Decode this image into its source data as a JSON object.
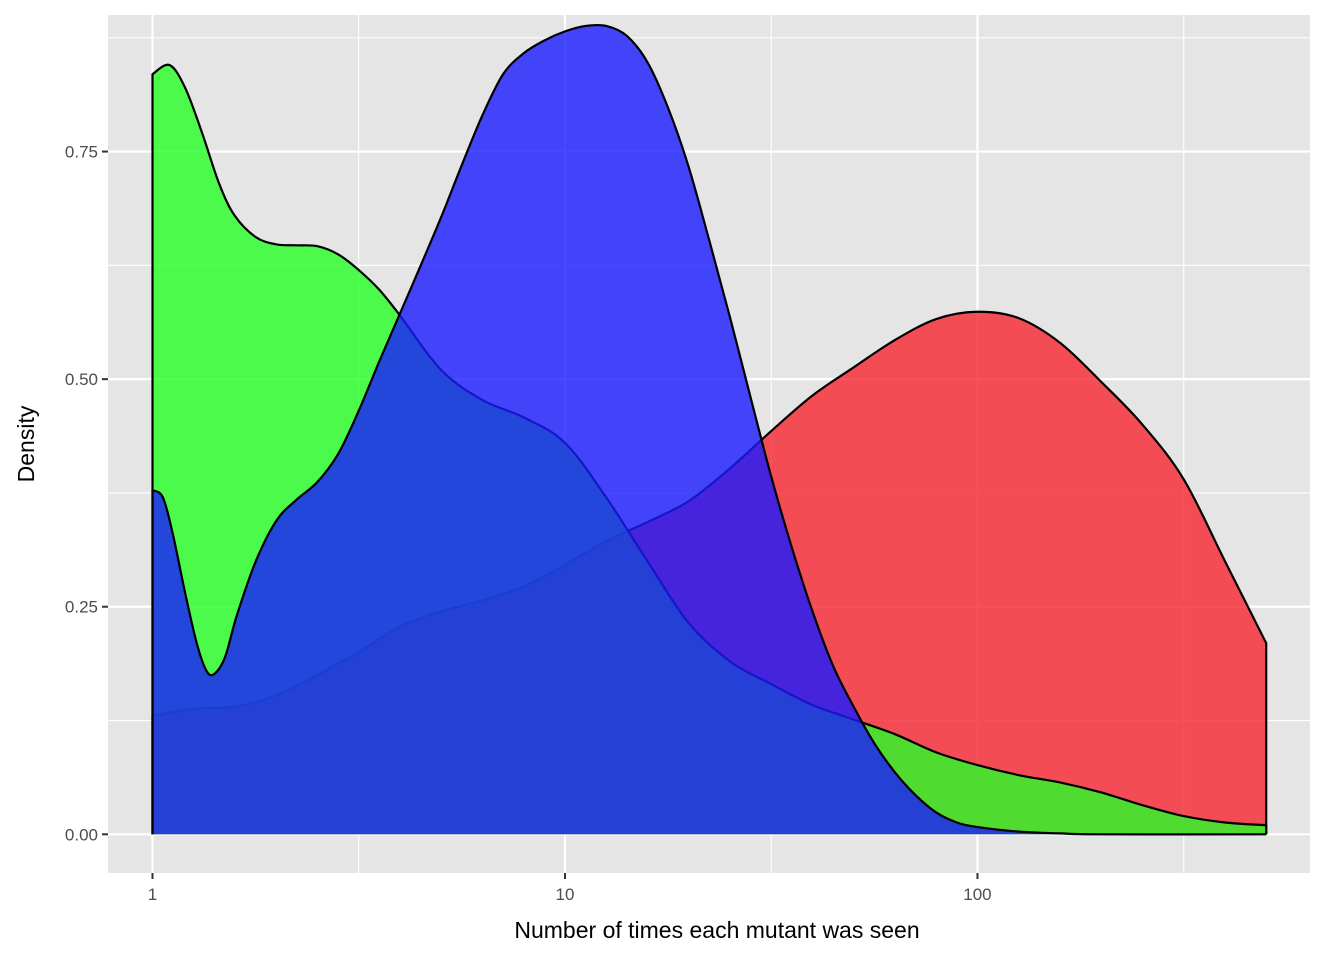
{
  "chart_data": {
    "type": "area",
    "title": "",
    "xlabel": "Number of times each mutant was seen",
    "ylabel": "Density",
    "x_scale": "log10",
    "xlim": [
      0.78,
      640
    ],
    "ylim": [
      -0.0425,
      0.9
    ],
    "x_ticks": [
      1,
      10,
      100
    ],
    "x_tick_labels": [
      "1",
      "10",
      "100"
    ],
    "y_ticks": [
      0,
      0.25,
      0.5,
      0.75
    ],
    "y_tick_labels": [
      "0.00",
      "0.25",
      "0.50",
      "0.75"
    ],
    "grid": true,
    "legend": "none",
    "colors": {
      "panel_background": "#e5e5e5",
      "grid": "#ffffff",
      "outline": "#000000"
    },
    "series": [
      {
        "fill": "#f8262f",
        "opacity": 0.8,
        "points": [
          [
            1,
            0.13
          ],
          [
            1.26,
            0.138
          ],
          [
            1.58,
            0.14
          ],
          [
            2.0,
            0.153
          ],
          [
            2.51,
            0.175
          ],
          [
            3.16,
            0.2
          ],
          [
            3.98,
            0.228
          ],
          [
            5.01,
            0.245
          ],
          [
            6.31,
            0.257
          ],
          [
            7.94,
            0.272
          ],
          [
            10.0,
            0.296
          ],
          [
            12.59,
            0.322
          ],
          [
            15.85,
            0.343
          ],
          [
            19.95,
            0.366
          ],
          [
            25.12,
            0.402
          ],
          [
            31.62,
            0.443
          ],
          [
            39.81,
            0.482
          ],
          [
            50.12,
            0.513
          ],
          [
            63.1,
            0.543
          ],
          [
            79.43,
            0.566
          ],
          [
            100.0,
            0.574
          ],
          [
            125.89,
            0.567
          ],
          [
            158.49,
            0.54
          ],
          [
            199.53,
            0.497
          ],
          [
            251.19,
            0.45
          ],
          [
            316.23,
            0.39
          ],
          [
            398.11,
            0.3
          ],
          [
            501.19,
            0.21
          ]
        ]
      },
      {
        "fill": "#26ff26",
        "opacity": 0.8,
        "points": [
          [
            1,
            0.835
          ],
          [
            1.1,
            0.845
          ],
          [
            1.2,
            0.82
          ],
          [
            1.32,
            0.77
          ],
          [
            1.45,
            0.715
          ],
          [
            1.58,
            0.68
          ],
          [
            1.78,
            0.656
          ],
          [
            2.0,
            0.648
          ],
          [
            2.24,
            0.647
          ],
          [
            2.51,
            0.646
          ],
          [
            2.82,
            0.637
          ],
          [
            3.16,
            0.62
          ],
          [
            3.55,
            0.598
          ],
          [
            3.98,
            0.57
          ],
          [
            5.01,
            0.51
          ],
          [
            6.31,
            0.477
          ],
          [
            7.94,
            0.458
          ],
          [
            10.0,
            0.43
          ],
          [
            12.59,
            0.37
          ],
          [
            15.85,
            0.3
          ],
          [
            19.95,
            0.232
          ],
          [
            25.12,
            0.19
          ],
          [
            31.62,
            0.165
          ],
          [
            39.81,
            0.142
          ],
          [
            50.12,
            0.126
          ],
          [
            63.1,
            0.11
          ],
          [
            79.43,
            0.09
          ],
          [
            100.0,
            0.076
          ],
          [
            125.89,
            0.065
          ],
          [
            158.49,
            0.057
          ],
          [
            199.53,
            0.046
          ],
          [
            251.19,
            0.032
          ],
          [
            316.23,
            0.02
          ],
          [
            398.11,
            0.013
          ],
          [
            501.19,
            0.01
          ]
        ]
      },
      {
        "fill": "#1a1aff",
        "opacity": 0.8,
        "points": [
          [
            1,
            0.378
          ],
          [
            1.06,
            0.37
          ],
          [
            1.12,
            0.33
          ],
          [
            1.2,
            0.265
          ],
          [
            1.28,
            0.21
          ],
          [
            1.35,
            0.18
          ],
          [
            1.41,
            0.176
          ],
          [
            1.5,
            0.195
          ],
          [
            1.6,
            0.24
          ],
          [
            1.78,
            0.3
          ],
          [
            2.0,
            0.345
          ],
          [
            2.24,
            0.368
          ],
          [
            2.51,
            0.387
          ],
          [
            2.82,
            0.418
          ],
          [
            3.16,
            0.465
          ],
          [
            3.55,
            0.52
          ],
          [
            3.98,
            0.572
          ],
          [
            4.47,
            0.625
          ],
          [
            5.01,
            0.678
          ],
          [
            5.62,
            0.735
          ],
          [
            6.31,
            0.79
          ],
          [
            7.08,
            0.835
          ],
          [
            7.94,
            0.858
          ],
          [
            8.91,
            0.872
          ],
          [
            10.0,
            0.882
          ],
          [
            11.22,
            0.888
          ],
          [
            12.59,
            0.888
          ],
          [
            14.13,
            0.877
          ],
          [
            15.85,
            0.848
          ],
          [
            17.78,
            0.798
          ],
          [
            19.95,
            0.733
          ],
          [
            22.39,
            0.652
          ],
          [
            25.12,
            0.568
          ],
          [
            28.18,
            0.48
          ],
          [
            31.62,
            0.393
          ],
          [
            35.48,
            0.315
          ],
          [
            39.81,
            0.245
          ],
          [
            44.67,
            0.185
          ],
          [
            50.12,
            0.14
          ],
          [
            56.23,
            0.1
          ],
          [
            63.1,
            0.068
          ],
          [
            70.79,
            0.043
          ],
          [
            79.43,
            0.024
          ],
          [
            89.13,
            0.013
          ],
          [
            100.0,
            0.008
          ],
          [
            125.89,
            0.003
          ],
          [
            158.49,
            0.001
          ],
          [
            199.53,
            0.0
          ],
          [
            501.19,
            0.0
          ]
        ]
      }
    ]
  }
}
